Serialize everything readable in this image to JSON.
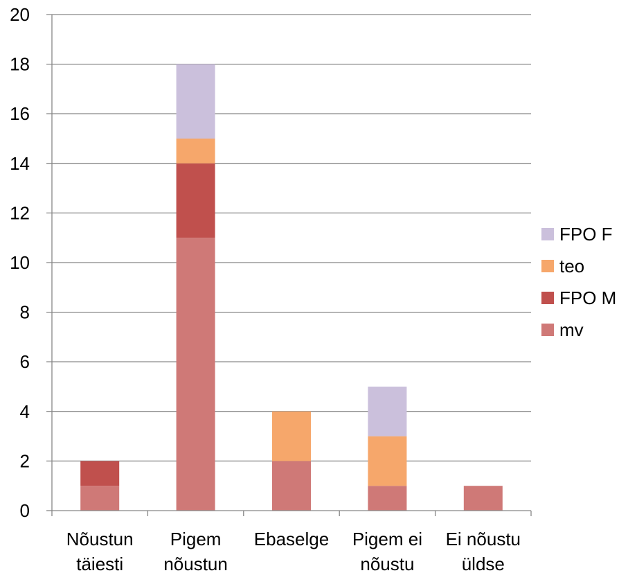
{
  "chart_data": {
    "type": "bar",
    "stacked": true,
    "categories": [
      [
        "Nõustun",
        "täiesti"
      ],
      [
        "Pigem",
        "nõustun"
      ],
      [
        "Ebaselge"
      ],
      [
        "Pigem ei",
        "nõustu"
      ],
      [
        "Ei nõustu",
        "üldse"
      ]
    ],
    "series": [
      {
        "name": "mv",
        "color": "#cf7977",
        "values": [
          1,
          11,
          2,
          1,
          1
        ]
      },
      {
        "name": "FPO M",
        "color": "#c0504d",
        "values": [
          1,
          3,
          0,
          0,
          0
        ]
      },
      {
        "name": "teo",
        "color": "#f6a76b",
        "values": [
          0,
          1,
          2,
          2,
          0
        ]
      },
      {
        "name": "FPO F",
        "color": "#cbc0dc",
        "values": [
          0,
          3,
          0,
          2,
          0
        ]
      }
    ],
    "legend_order": [
      "FPO F",
      "teo",
      "FPO M",
      "mv"
    ],
    "yticks": [
      0,
      2,
      4,
      6,
      8,
      10,
      12,
      14,
      16,
      18,
      20
    ],
    "ylim": [
      0,
      20
    ],
    "grid": true,
    "legend_position": "right",
    "title": "",
    "xlabel": "",
    "ylabel": ""
  }
}
